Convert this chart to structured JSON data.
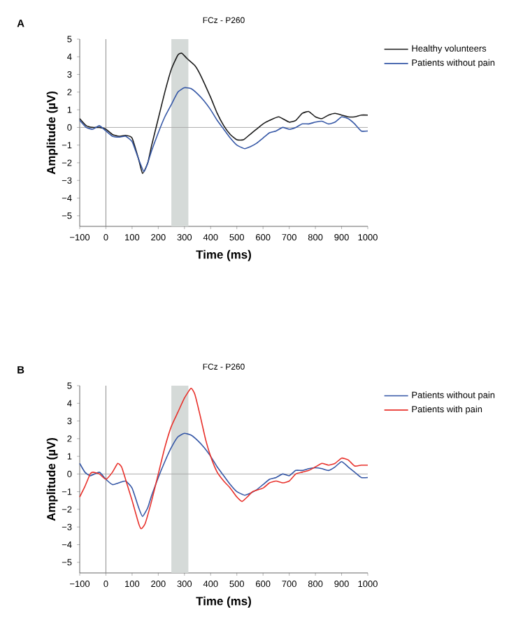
{
  "chart_data": [
    {
      "type": "line",
      "title": "FCz - P260",
      "xlabel": "Time (ms)",
      "ylabel": "Amplitude (µV)",
      "annotations": [
        "A"
      ],
      "xlim": [
        -100,
        1000
      ],
      "ylim": [
        -5.6,
        5
      ],
      "xticks": [
        {
          "value": -100,
          "label": "−100"
        },
        0,
        100,
        200,
        300,
        400,
        500,
        600,
        700,
        800,
        900,
        1000
      ],
      "yticks": [
        {
          "value": -5,
          "label": "−5"
        },
        {
          "value": -4,
          "label": "−4"
        },
        {
          "value": -3,
          "label": "−3"
        },
        {
          "value": -2,
          "label": "−2"
        },
        {
          "value": -1,
          "label": "−1"
        },
        0,
        1,
        2,
        3,
        4,
        5
      ],
      "ref_lines": [
        {
          "axis": "x",
          "value": 0,
          "color": "#8c8c8c"
        },
        {
          "axis": "y",
          "value": 0,
          "color": "#ababab"
        }
      ],
      "bands": [
        {
          "axis": "x",
          "from": 250,
          "to": 315,
          "color": "#d5dad8"
        }
      ],
      "legend": "right",
      "marker": "none",
      "series": [
        {
          "name": "Healthy volunteers",
          "color": "#1a1a1a",
          "x": [
            -100,
            -75,
            -50,
            -25,
            0,
            25,
            50,
            75,
            100,
            125,
            140,
            160,
            175,
            200,
            225,
            250,
            275,
            290,
            310,
            340,
            360,
            400,
            425,
            450,
            475,
            500,
            525,
            550,
            575,
            600,
            625,
            660,
            700,
            725,
            750,
            775,
            800,
            825,
            850,
            875,
            900,
            925,
            950,
            975,
            1000
          ],
          "values": [
            0.5,
            0.1,
            0,
            0,
            -0.1,
            -0.4,
            -0.5,
            -0.45,
            -0.6,
            -1.8,
            -2.6,
            -2.0,
            -1.0,
            0.5,
            2.0,
            3.3,
            4.1,
            4.2,
            3.9,
            3.5,
            3.0,
            1.7,
            0.8,
            0.1,
            -0.4,
            -0.7,
            -0.7,
            -0.4,
            -0.1,
            0.2,
            0.4,
            0.6,
            0.3,
            0.4,
            0.8,
            0.9,
            0.6,
            0.5,
            0.7,
            0.8,
            0.7,
            0.6,
            0.6,
            0.7,
            0.7
          ]
        },
        {
          "name": "Patients without pain",
          "color": "#3557a6",
          "x": [
            -100,
            -75,
            -50,
            -25,
            0,
            25,
            50,
            75,
            100,
            125,
            145,
            160,
            175,
            200,
            225,
            250,
            275,
            300,
            325,
            350,
            375,
            400,
            425,
            450,
            475,
            500,
            530,
            550,
            575,
            600,
            625,
            650,
            675,
            700,
            725,
            750,
            775,
            800,
            825,
            850,
            875,
            900,
            925,
            950,
            975,
            1000
          ],
          "values": [
            0.4,
            0,
            -0.1,
            0.1,
            -0.2,
            -0.5,
            -0.55,
            -0.5,
            -0.8,
            -1.8,
            -2.5,
            -2.0,
            -1.3,
            -0.3,
            0.6,
            1.3,
            2.0,
            2.25,
            2.2,
            1.9,
            1.5,
            1.0,
            0.4,
            -0.1,
            -0.6,
            -1.0,
            -1.2,
            -1.1,
            -0.9,
            -0.6,
            -0.3,
            -0.2,
            0,
            -0.1,
            0,
            0.2,
            0.2,
            0.3,
            0.35,
            0.2,
            0.3,
            0.6,
            0.5,
            0.2,
            -0.2,
            -0.2
          ]
        }
      ]
    },
    {
      "type": "line",
      "title": "FCz - P260",
      "xlabel": "Time (ms)",
      "ylabel": "Amplitude (µV)",
      "annotations": [
        "B"
      ],
      "xlim": [
        -100,
        1000
      ],
      "ylim": [
        -5.6,
        5
      ],
      "xticks": [
        {
          "value": -100,
          "label": "−100"
        },
        0,
        100,
        200,
        300,
        400,
        500,
        600,
        700,
        800,
        900,
        1000
      ],
      "yticks": [
        {
          "value": -5,
          "label": "−5"
        },
        {
          "value": -4,
          "label": "−4"
        },
        {
          "value": -3,
          "label": "−3"
        },
        {
          "value": -2,
          "label": "−2"
        },
        {
          "value": -1,
          "label": "−1"
        },
        0,
        1,
        2,
        3,
        4,
        5
      ],
      "ref_lines": [
        {
          "axis": "x",
          "value": 0,
          "color": "#8c8c8c"
        },
        {
          "axis": "y",
          "value": 0,
          "color": "#ababab"
        }
      ],
      "bands": [
        {
          "axis": "x",
          "from": 250,
          "to": 315,
          "color": "#d5dad8"
        }
      ],
      "legend": "right",
      "marker": "none",
      "series": [
        {
          "name": "Patients without pain",
          "color": "#3557a6",
          "x": [
            -100,
            -80,
            -60,
            -25,
            0,
            25,
            50,
            75,
            100,
            125,
            140,
            160,
            175,
            200,
            225,
            250,
            275,
            300,
            325,
            350,
            375,
            400,
            425,
            450,
            475,
            500,
            530,
            550,
            575,
            600,
            625,
            650,
            675,
            700,
            725,
            750,
            775,
            800,
            825,
            850,
            875,
            900,
            925,
            950,
            975,
            1000
          ],
          "values": [
            0.6,
            0.1,
            -0.1,
            0.1,
            -0.3,
            -0.6,
            -0.5,
            -0.4,
            -0.8,
            -1.9,
            -2.4,
            -1.9,
            -1.2,
            -0.2,
            0.7,
            1.5,
            2.1,
            2.3,
            2.2,
            1.9,
            1.5,
            1.0,
            0.4,
            -0.1,
            -0.6,
            -1.0,
            -1.2,
            -1.1,
            -0.9,
            -0.6,
            -0.3,
            -0.2,
            0,
            -0.1,
            0.2,
            0.2,
            0.3,
            0.35,
            0.3,
            0.2,
            0.4,
            0.7,
            0.4,
            0.1,
            -0.2,
            -0.2
          ]
        },
        {
          "name": "Patients with pain",
          "color": "#e8302a",
          "x": [
            -100,
            -80,
            -60,
            -50,
            -25,
            0,
            25,
            45,
            60,
            75,
            100,
            125,
            135,
            150,
            175,
            200,
            225,
            250,
            275,
            300,
            325,
            340,
            360,
            380,
            400,
            425,
            450,
            475,
            500,
            520,
            540,
            560,
            600,
            625,
            650,
            675,
            700,
            725,
            750,
            775,
            800,
            825,
            850,
            875,
            900,
            925,
            950,
            975,
            1000
          ],
          "values": [
            -1.3,
            -0.7,
            0,
            0.1,
            0,
            -0.3,
            0.1,
            0.6,
            0.4,
            -0.3,
            -1.5,
            -2.8,
            -3.1,
            -2.8,
            -1.5,
            0,
            1.5,
            2.7,
            3.5,
            4.3,
            4.85,
            4.5,
            3.3,
            2.0,
            1.0,
            0.1,
            -0.4,
            -0.8,
            -1.3,
            -1.55,
            -1.3,
            -1.0,
            -0.8,
            -0.5,
            -0.4,
            -0.5,
            -0.4,
            0,
            0.1,
            0.2,
            0.4,
            0.6,
            0.5,
            0.6,
            0.9,
            0.8,
            0.45,
            0.5,
            0.5
          ]
        }
      ]
    }
  ]
}
